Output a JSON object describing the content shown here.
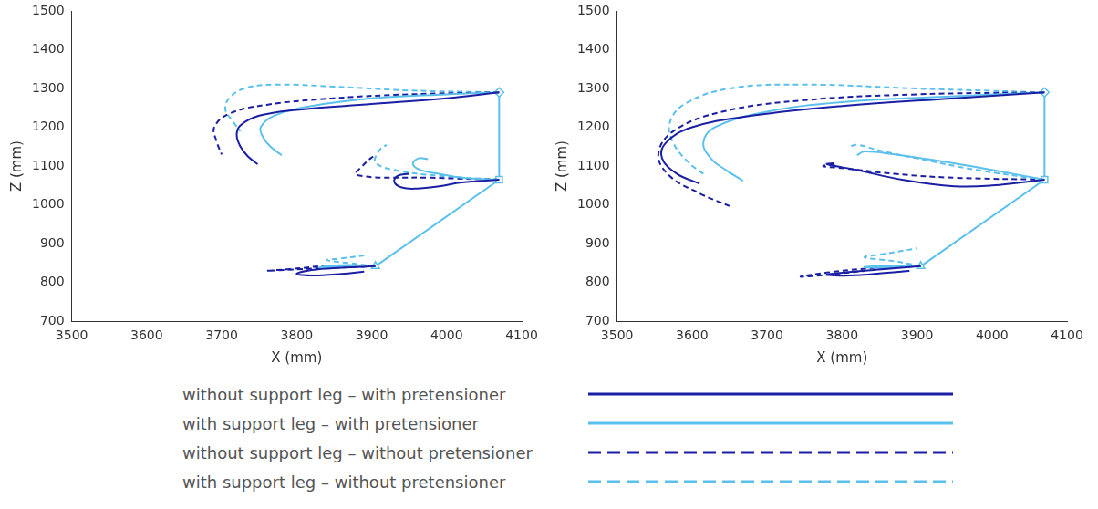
{
  "chart_data": [
    {
      "type": "line",
      "x_label": "X (mm)",
      "y_label": "Z (mm)",
      "xlim": [
        3500,
        4100
      ],
      "xticks": [
        3500,
        3600,
        3700,
        3800,
        3900,
        4000,
        4100
      ],
      "ylim": [
        700,
        1500
      ],
      "yticks": [
        700,
        800,
        900,
        1000,
        1100,
        1200,
        1300,
        1400,
        1500
      ],
      "grid": false,
      "legend": "bottom",
      "initial_posture": {
        "x": [
          4070,
          4070,
          3905
        ],
        "values": [
          1290,
          1065,
          842
        ],
        "color": "#5bc0eb",
        "markers": [
          "diamond",
          "square",
          "triangle"
        ]
      },
      "series": [
        {
          "name": "without support leg – with pretensioner",
          "color": "#1b1fa3",
          "line_style": "solid",
          "x": [
            4070,
            4000,
            3900,
            3800,
            3750,
            3725,
            3720,
            3725,
            3735,
            3748,
            null,
            4070,
            4020,
            3990,
            3960,
            3940,
            3930,
            3935,
            3950,
            null,
            3905,
            3860,
            3820,
            3800,
            3820,
            3860,
            3890
          ],
          "values": [
            1290,
            1275,
            1260,
            1245,
            1230,
            1205,
            1180,
            1150,
            1125,
            1105,
            null,
            1065,
            1058,
            1048,
            1042,
            1045,
            1060,
            1075,
            1080,
            null,
            842,
            838,
            832,
            822,
            818,
            822,
            828
          ]
        },
        {
          "name": "with support leg – with pretensioner",
          "color": "#5bc0eb",
          "line_style": "solid",
          "x": [
            4070,
            4000,
            3900,
            3820,
            3770,
            3752,
            3755,
            3765,
            3780,
            null,
            4070,
            4020,
            3990,
            3965,
            3955,
            3962,
            3975,
            null,
            3905,
            3870,
            3840,
            3830,
            3850,
            3880
          ],
          "values": [
            1290,
            1285,
            1275,
            1255,
            1230,
            1200,
            1175,
            1150,
            1128,
            null,
            1065,
            1070,
            1080,
            1090,
            1105,
            1120,
            1118,
            null,
            842,
            845,
            842,
            838,
            840,
            845
          ]
        },
        {
          "name": "without support leg – without pretensioner",
          "color": "#1b1fa3",
          "line_style": "dashed",
          "x": [
            4070,
            3950,
            3850,
            3760,
            3710,
            3690,
            3693,
            3700,
            null,
            4070,
            3980,
            3880,
            3890,
            3905,
            null,
            3905,
            3850,
            3800,
            3760,
            3800,
            3840
          ],
          "values": [
            1290,
            1285,
            1275,
            1258,
            1235,
            1200,
            1165,
            1130,
            null,
            1065,
            1070,
            1077,
            1105,
            1130,
            null,
            842,
            838,
            834,
            830,
            836,
            844
          ]
        },
        {
          "name": "with support leg – without pretensioner",
          "color": "#5bc0eb",
          "line_style": "dashed",
          "x": [
            4070,
            3950,
            3850,
            3770,
            3730,
            3710,
            3705,
            3715,
            3725,
            null,
            4070,
            3990,
            3930,
            3905,
            3910,
            3920,
            null,
            3905,
            3870,
            3840,
            3860,
            3890
          ],
          "values": [
            1290,
            1295,
            1305,
            1310,
            1300,
            1275,
            1245,
            1215,
            1190,
            null,
            1065,
            1075,
            1090,
            1110,
            1140,
            1155,
            null,
            842,
            850,
            858,
            862,
            870
          ]
        }
      ]
    },
    {
      "type": "line",
      "x_label": "X (mm)",
      "y_label": "Z (mm)",
      "xlim": [
        3500,
        4100
      ],
      "xticks": [
        3500,
        3600,
        3700,
        3800,
        3900,
        4000,
        4100
      ],
      "ylim": [
        700,
        1500
      ],
      "yticks": [
        700,
        800,
        900,
        1000,
        1100,
        1200,
        1300,
        1400,
        1500
      ],
      "grid": false,
      "initial_posture": {
        "x": [
          4070,
          4070,
          3905
        ],
        "values": [
          1290,
          1065,
          842
        ],
        "color": "#5bc0eb",
        "markers": [
          "diamond",
          "square",
          "triangle"
        ]
      },
      "series": [
        {
          "name": "without support leg – with pretensioner",
          "color": "#1b1fa3",
          "line_style": "solid",
          "x": [
            4070,
            3950,
            3800,
            3680,
            3600,
            3565,
            3560,
            3580,
            3610,
            null,
            4070,
            4000,
            3950,
            3880,
            3820,
            3780,
            3790,
            null,
            3905,
            3860,
            3800,
            3780,
            3810,
            3860,
            3890
          ],
          "values": [
            1290,
            1275,
            1255,
            1230,
            1200,
            1160,
            1120,
            1080,
            1055,
            null,
            1065,
            1050,
            1048,
            1065,
            1090,
            1105,
            1108,
            null,
            842,
            835,
            825,
            820,
            818,
            825,
            830
          ]
        },
        {
          "name": "with support leg – with pretensioner",
          "color": "#5bc0eb",
          "line_style": "solid",
          "x": [
            4070,
            3950,
            3800,
            3700,
            3630,
            3615,
            3625,
            3645,
            3668,
            null,
            4070,
            4000,
            3940,
            3870,
            3830,
            3820,
            null,
            3905,
            3860,
            3830,
            3850,
            3880
          ],
          "values": [
            1290,
            1280,
            1265,
            1240,
            1200,
            1160,
            1120,
            1090,
            1062,
            null,
            1065,
            1090,
            1110,
            1130,
            1138,
            1128,
            null,
            842,
            843,
            840,
            838,
            842
          ]
        },
        {
          "name": "without support leg – without pretensioner",
          "color": "#1b1fa3",
          "line_style": "dashed",
          "x": [
            4070,
            3900,
            3750,
            3640,
            3575,
            3555,
            3570,
            3610,
            3650,
            null,
            4070,
            3950,
            3870,
            3800,
            3775,
            3790,
            null,
            3905,
            3850,
            3790,
            3745,
            3770,
            3830
          ],
          "values": [
            1290,
            1285,
            1270,
            1240,
            1190,
            1130,
            1075,
            1030,
            997,
            null,
            1065,
            1070,
            1080,
            1095,
            1100,
            1105,
            null,
            842,
            838,
            828,
            815,
            818,
            830
          ]
        },
        {
          "name": "with support leg – without pretensioner",
          "color": "#5bc0eb",
          "line_style": "dashed",
          "x": [
            4070,
            3900,
            3750,
            3650,
            3590,
            3570,
            3575,
            3595,
            3615,
            null,
            4070,
            3980,
            3900,
            3850,
            3820,
            3810,
            null,
            3905,
            3870,
            3830,
            3860,
            3900
          ],
          "values": [
            1290,
            1300,
            1310,
            1300,
            1260,
            1210,
            1160,
            1110,
            1080,
            null,
            1065,
            1090,
            1120,
            1140,
            1155,
            1150,
            null,
            842,
            855,
            865,
            875,
            888
          ]
        }
      ]
    }
  ]
}
